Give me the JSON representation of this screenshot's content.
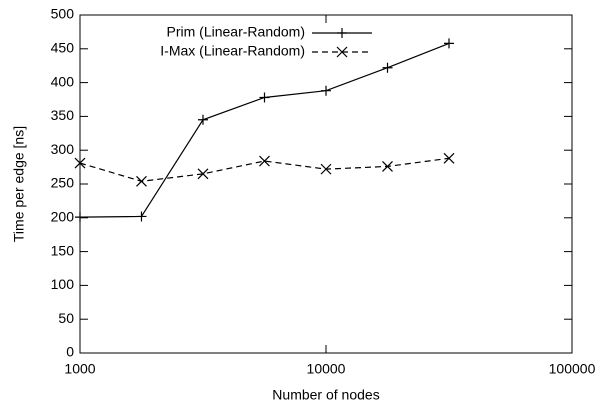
{
  "chart_data": {
    "type": "line",
    "x_label": "Number of nodes",
    "y_label": "Time per edge [ns]",
    "x": [
      1000,
      1778,
      3162,
      5623,
      10000,
      17783,
      31623
    ],
    "series": [
      {
        "name": "Prim (Linear-Random)",
        "color": "#000000",
        "style": "solid",
        "marker": "plus",
        "values": [
          201,
          202,
          345,
          378,
          388,
          422,
          458
        ]
      },
      {
        "name": "I-Max (Linear-Random)",
        "color": "#000000",
        "style": "dashed",
        "marker": "cross",
        "values": [
          281,
          254,
          265,
          284,
          272,
          276,
          288
        ]
      }
    ],
    "xlim": [
      1000,
      100000
    ],
    "xticks": [
      1000,
      10000,
      100000
    ],
    "xscale": "log",
    "ylim": [
      0,
      500
    ],
    "yticks": [
      0,
      50,
      100,
      150,
      200,
      250,
      300,
      350,
      400,
      450,
      500
    ],
    "legend": "top-left",
    "grid": false
  }
}
